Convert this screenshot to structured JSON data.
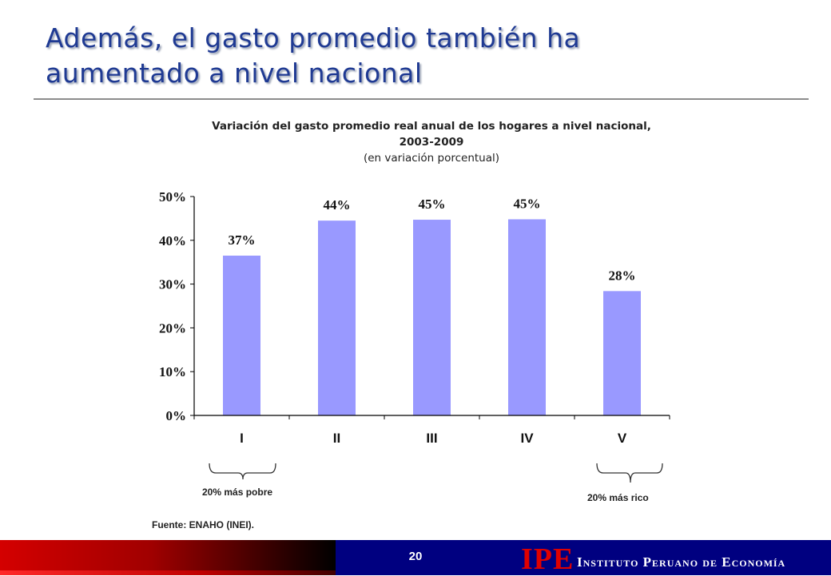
{
  "slide": {
    "title_line1": "Además, el gasto promedio también ha",
    "title_line2": "aumentado a nivel nacional",
    "source": "Fuente: ENAHO (INEI).",
    "brace_left_label": "20% más pobre",
    "brace_right_label": "20% más rico",
    "page_number": "20",
    "logo": "IPE",
    "institution": "Instituto Peruano de Economía",
    "colors": {
      "title": "#1f3a93",
      "bar": "#9999ff",
      "footer_navy": "#000080",
      "footer_red": "#d40000",
      "logo_red": "#e00000"
    }
  },
  "chart_data": {
    "type": "bar",
    "title_line1": "Variación del gasto promedio real anual de los hogares a nivel nacional,",
    "title_line2": "2003-2009",
    "subtitle": "(en variación porcentual)",
    "categories": [
      "I",
      "II",
      "III",
      "IV",
      "V"
    ],
    "values": [
      36.5,
      44.5,
      44.7,
      44.8,
      28.4
    ],
    "data_labels": [
      "37%",
      "44%",
      "45%",
      "45%",
      "28%"
    ],
    "ylim": [
      0,
      50
    ],
    "yticks": [
      0,
      10,
      20,
      30,
      40,
      50
    ],
    "ytick_labels": [
      "0%",
      "10%",
      "20%",
      "30%",
      "40%",
      "50%"
    ],
    "xlabel": "",
    "ylabel": "",
    "grid": false,
    "legend": "none"
  }
}
